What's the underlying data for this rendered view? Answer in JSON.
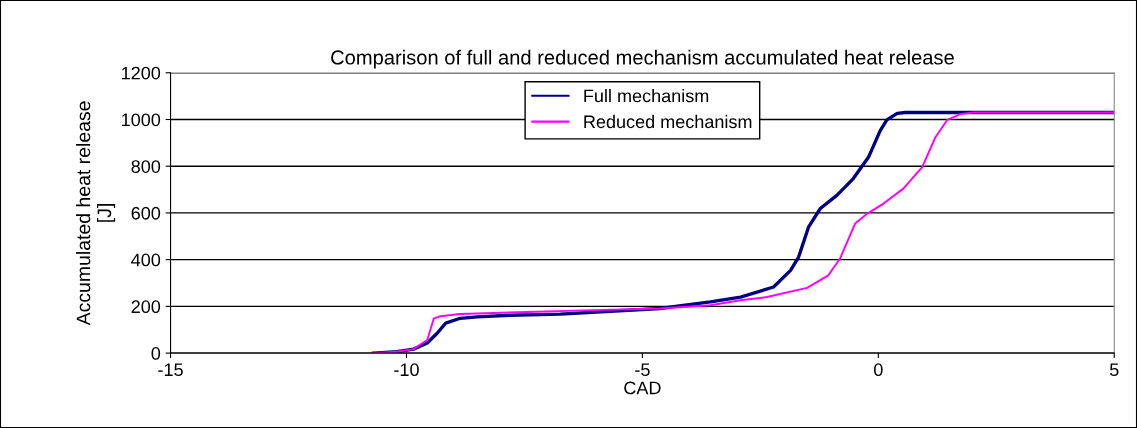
{
  "chart_data": {
    "type": "line",
    "title": "Comparison of full and reduced mechanism accumulated heat release",
    "xlabel": "CAD",
    "ylabel": "Accumulated heat release\n[J]",
    "xlim": [
      -15,
      5
    ],
    "xticks": [
      -15,
      -10,
      -5,
      0,
      5
    ],
    "ylim": [
      0,
      1200
    ],
    "yticks": [
      0,
      200,
      400,
      600,
      800,
      1000,
      1200
    ],
    "grid": "y",
    "legend": "top",
    "marker": "none",
    "line_style": "solid",
    "series": [
      {
        "name": "Full mechanism",
        "color": "#000080",
        "x": [
          -10.7,
          -10.2,
          -9.85,
          -9.56,
          -9.35,
          -9.17,
          -8.86,
          -8.5,
          -7.8,
          -6.74,
          -5.68,
          -4.62,
          -4.26,
          -3.56,
          -2.92,
          -2.22,
          -1.86,
          -1.69,
          -1.48,
          -1.23,
          -0.88,
          -0.53,
          -0.21,
          0.04,
          0.18,
          0.4,
          0.57,
          5
        ],
        "values": [
          0,
          6,
          17,
          43,
          85,
          128,
          149,
          155,
          162,
          167,
          179,
          191,
          201,
          219,
          240,
          283,
          354,
          411,
          539,
          619,
          675,
          747,
          838,
          952,
          998,
          1026,
          1030,
          1030
        ]
      },
      {
        "name": "Reduced mechanism",
        "color": "#ff00ff",
        "x": [
          -10.7,
          -10.2,
          -9.85,
          -9.56,
          -9.42,
          -9.28,
          -8.86,
          -7.44,
          -6.04,
          -4.62,
          -3.56,
          -2.92,
          -2.36,
          -1.51,
          -1.06,
          -0.81,
          -0.49,
          -0.24,
          0.11,
          0.53,
          0.93,
          1.21,
          1.46,
          1.74,
          2.01,
          5
        ],
        "values": [
          0,
          6,
          17,
          56,
          148,
          158,
          167,
          176,
          184,
          191,
          205,
          226,
          240,
          279,
          333,
          405,
          555,
          596,
          640,
          704,
          796,
          924,
          998,
          1023,
          1030,
          1030
        ]
      }
    ]
  }
}
